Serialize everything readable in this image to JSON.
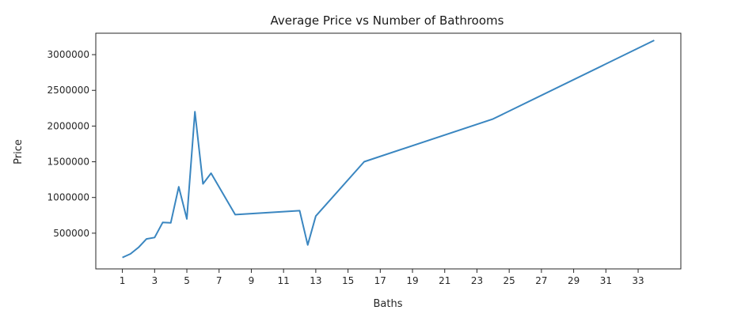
{
  "chart_data": {
    "type": "line",
    "title": "Average Price vs Number of Bathrooms",
    "xlabel": "Baths",
    "ylabel": "Price",
    "xlim": [
      -0.65,
      35.65
    ],
    "ylim": [
      0,
      3300000
    ],
    "x_ticks": [
      1,
      3,
      5,
      7,
      9,
      11,
      13,
      15,
      17,
      19,
      21,
      23,
      25,
      27,
      29,
      31,
      33
    ],
    "y_ticks": [
      500000,
      1000000,
      1500000,
      2000000,
      2500000,
      3000000
    ],
    "grid": false,
    "series": [
      {
        "color": "#3a86c0",
        "x": [
          1.0,
          1.5,
          2.0,
          2.5,
          3.0,
          3.5,
          4.0,
          4.5,
          5.0,
          5.5,
          6.0,
          6.5,
          8.0,
          12.0,
          12.5,
          13.0,
          16.0,
          24.0,
          34.0
        ],
        "y": [
          160000,
          210000,
          300000,
          420000,
          440000,
          650000,
          645000,
          1150000,
          700000,
          2200000,
          1190000,
          1340000,
          760000,
          815000,
          335000,
          740000,
          1500000,
          2100000,
          3200000
        ]
      }
    ]
  }
}
